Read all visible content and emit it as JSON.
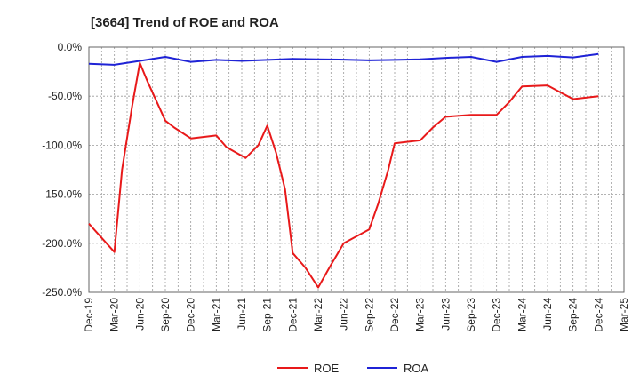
{
  "chart_data": {
    "type": "line",
    "title": "[3664]  Trend of ROE and ROA",
    "xlabel": "",
    "ylabel": "",
    "ylim": [
      -250,
      0
    ],
    "y_ticks": [
      0,
      -50,
      -100,
      -150,
      -200,
      -250
    ],
    "y_tick_labels": [
      "0.0%",
      "-50.0%",
      "-100.0%",
      "-150.0%",
      "-200.0%",
      "-250.0%"
    ],
    "x_tick_labels": [
      "Dec-19",
      "Mar-20",
      "Jun-20",
      "Sep-20",
      "Dec-20",
      "Mar-21",
      "Jun-21",
      "Sep-21",
      "Dec-21",
      "Mar-22",
      "Jun-22",
      "Sep-22",
      "Dec-22",
      "Mar-23",
      "Jun-23",
      "Sep-23",
      "Dec-23",
      "Mar-24",
      "Jun-24",
      "Sep-24",
      "Dec-24",
      "Mar-25"
    ],
    "grid": true,
    "legend_position": "bottom-center",
    "series": [
      {
        "name": "ROE",
        "color": "#e8191a",
        "points": [
          [
            0,
            -180
          ],
          [
            2,
            -209
          ],
          [
            2.6,
            -125
          ],
          [
            3.4,
            -60
          ],
          [
            4,
            -16
          ],
          [
            4.6,
            -35
          ],
          [
            6,
            -75
          ],
          [
            6.7,
            -82
          ],
          [
            8,
            -93
          ],
          [
            10,
            -90
          ],
          [
            10.8,
            -102
          ],
          [
            12.3,
            -113
          ],
          [
            13.3,
            -100
          ],
          [
            14,
            -80
          ],
          [
            14.7,
            -108
          ],
          [
            15.4,
            -145
          ],
          [
            16,
            -210
          ],
          [
            17,
            -225
          ],
          [
            18,
            -245
          ],
          [
            19,
            -222
          ],
          [
            20,
            -200
          ],
          [
            22,
            -186
          ],
          [
            22.7,
            -160
          ],
          [
            23.5,
            -125
          ],
          [
            24,
            -98
          ],
          [
            26,
            -95
          ],
          [
            27,
            -82
          ],
          [
            28,
            -71
          ],
          [
            30,
            -69
          ],
          [
            32,
            -69
          ],
          [
            33,
            -56
          ],
          [
            34,
            -40
          ],
          [
            36,
            -39
          ],
          [
            38,
            -53
          ],
          [
            40,
            -50
          ]
        ]
      },
      {
        "name": "ROA",
        "color": "#1f23d6",
        "points": [
          [
            0,
            -17
          ],
          [
            2,
            -18
          ],
          [
            4,
            -14
          ],
          [
            6,
            -10
          ],
          [
            8,
            -15
          ],
          [
            10,
            -13
          ],
          [
            12,
            -14
          ],
          [
            14,
            -13
          ],
          [
            16,
            -12
          ],
          [
            18,
            -12.5
          ],
          [
            20,
            -12.8
          ],
          [
            22,
            -13.5
          ],
          [
            24,
            -13
          ],
          [
            26,
            -12.5
          ],
          [
            28,
            -11
          ],
          [
            30,
            -10
          ],
          [
            32,
            -15
          ],
          [
            34,
            -10
          ],
          [
            36,
            -9
          ],
          [
            38,
            -10.5
          ],
          [
            40,
            -7
          ]
        ]
      }
    ]
  }
}
